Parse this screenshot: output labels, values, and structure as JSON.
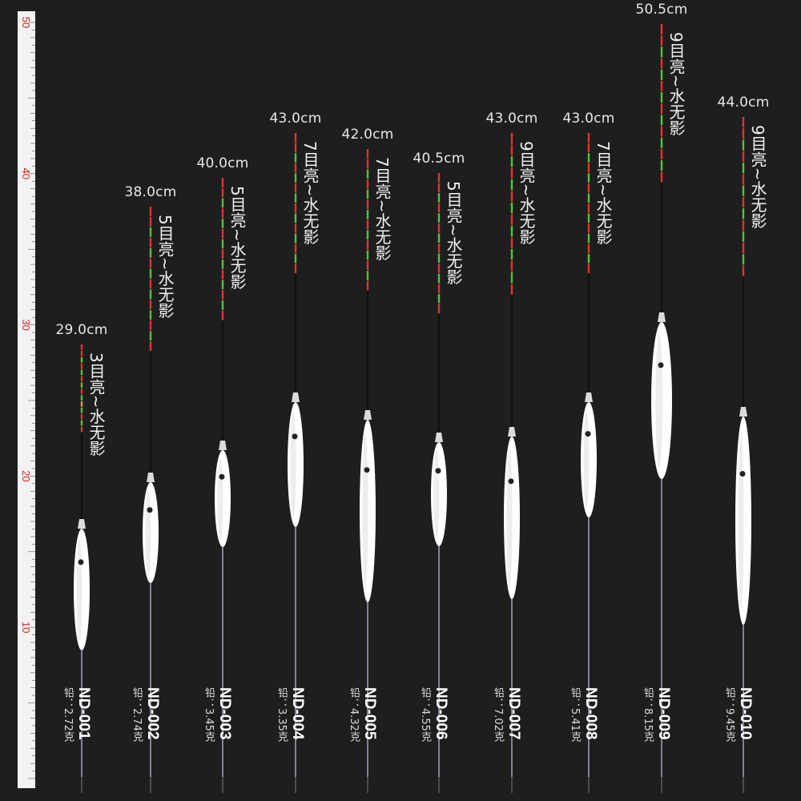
{
  "ruler": {
    "max": 50,
    "labels": [
      "10",
      "20",
      "30",
      "40",
      "50"
    ]
  },
  "colors": {
    "red": "#e8322a",
    "green": "#56c43a",
    "orange": "#e89a2a",
    "white": "#ffffff",
    "background": "#1e1e1e"
  },
  "floats": [
    {
      "length": "29.0cm",
      "spec": "3目亮~水无影",
      "model": "ND-001",
      "lead": "铅：2.72克",
      "length_cm": 29.0
    },
    {
      "length": "38.0cm",
      "spec": "5目亮~水无影",
      "model": "ND-002",
      "lead": "铅：2.74克",
      "length_cm": 38.0
    },
    {
      "length": "40.0cm",
      "spec": "5目亮~水无影",
      "model": "ND-003",
      "lead": "铅：3.45克",
      "length_cm": 40.0
    },
    {
      "length": "43.0cm",
      "spec": "7目亮~水无影",
      "model": "ND-004",
      "lead": "铅：3.35克",
      "length_cm": 43.0
    },
    {
      "length": "42.0cm",
      "spec": "7目亮~水无影",
      "model": "ND-005",
      "lead": "铅：4.32克",
      "length_cm": 42.0
    },
    {
      "length": "40.5cm",
      "spec": "5目亮~水无影",
      "model": "ND-006",
      "lead": "铅：4.55克",
      "length_cm": 40.5
    },
    {
      "length": "43.0cm",
      "spec": "9目亮~水无影",
      "model": "ND-007",
      "lead": "铅：7.02克",
      "length_cm": 43.0
    },
    {
      "length": "43.0cm",
      "spec": "7目亮~水无影",
      "model": "ND-008",
      "lead": "铅：5.41克",
      "length_cm": 43.0
    },
    {
      "length": "50.5cm",
      "spec": "9目亮~水无影",
      "model": "ND-009",
      "lead": "铅：8.15克",
      "length_cm": 50.5
    },
    {
      "length": "44.0cm",
      "spec": "9目亮~水无影",
      "model": "ND-010",
      "lead": "铅：9.45克",
      "length_cm": 44.0
    }
  ]
}
